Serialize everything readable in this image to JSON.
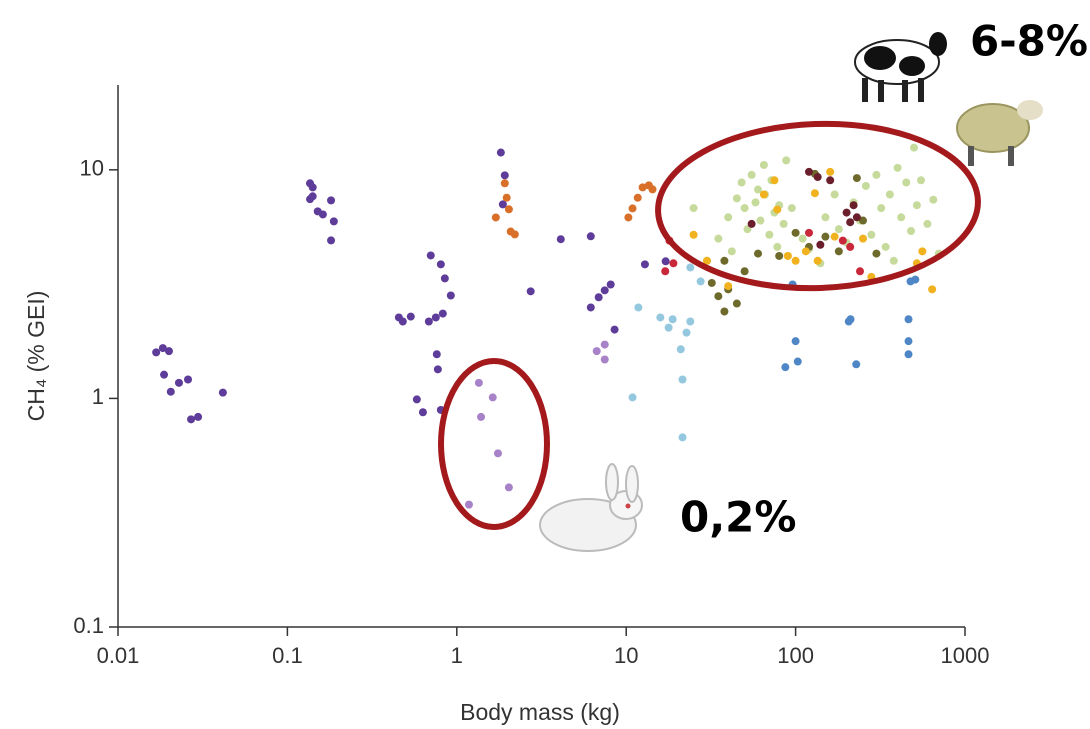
{
  "chart_data": {
    "type": "scatter",
    "x_label": "Body mass (kg)",
    "y_label": "CH₄ (% GEI)",
    "xscale": "log",
    "yscale": "log",
    "xlim": [
      0.01,
      1000
    ],
    "ylim": [
      0.1,
      23.5
    ],
    "xticks": [
      0.01,
      0.1,
      1,
      10,
      100,
      1000
    ],
    "yticks": [
      0.1,
      1,
      10
    ],
    "annotations": [
      "6-8%",
      "0,2%"
    ],
    "series": [
      {
        "color": "#5e3c99",
        "x": [
          0.0168,
          0.0184,
          0.02,
          0.0187,
          0.0205,
          0.0229,
          0.0259,
          0.027,
          0.0297,
          0.0416,
          0.136,
          0.141,
          0.151,
          0.162,
          0.181,
          0.188,
          0.181,
          0.136,
          0.141,
          0.455,
          0.48,
          0.535,
          0.684,
          0.752,
          0.827,
          0.702,
          0.805,
          0.85,
          0.922,
          0.762,
          0.773,
          0.581,
          0.631,
          0.805,
          1.82,
          1.92,
          1.87,
          4.11,
          2.73,
          6.18,
          6.88,
          7.47,
          8.1,
          6.18,
          8.54,
          12.9,
          17.1
        ],
        "values": [
          1.59,
          1.66,
          1.61,
          1.27,
          1.07,
          1.17,
          1.21,
          0.81,
          0.83,
          1.06,
          8.73,
          7.66,
          6.58,
          6.38,
          7.35,
          5.95,
          4.91,
          7.44,
          8.38,
          2.26,
          2.17,
          2.28,
          2.17,
          2.26,
          2.35,
          4.22,
          3.86,
          3.35,
          2.82,
          1.56,
          1.34,
          0.99,
          0.87,
          0.89,
          11.9,
          9.46,
          7.06,
          4.97,
          2.94,
          5.12,
          2.77,
          2.97,
          3.15,
          2.5,
          2.0,
          3.86,
          3.98
        ]
      },
      {
        "color": "#a882c8",
        "x": [
          1.35,
          1.39,
          1.63,
          1.75,
          2.03,
          1.18,
          6.7,
          7.47,
          7.47
        ],
        "values": [
          1.17,
          0.83,
          1.01,
          0.575,
          0.408,
          0.343,
          1.61,
          1.72,
          1.48
        ]
      },
      {
        "color": "#d9702a",
        "x": [
          1.92,
          1.97,
          2.03,
          2.08,
          2.2,
          1.7,
          10.9,
          11.7,
          12.5,
          13.6,
          14.3,
          10.3
        ],
        "values": [
          8.73,
          7.55,
          6.72,
          5.37,
          5.22,
          6.19,
          6.78,
          7.55,
          8.38,
          8.55,
          8.21,
          6.19
        ]
      },
      {
        "color": "#94c8df",
        "x": [
          10.9,
          11.8,
          15.9,
          17.8,
          18.8,
          21.0,
          22.7,
          23.9,
          21.5,
          21.5,
          27.5,
          23.9
        ],
        "values": [
          1.01,
          2.5,
          2.26,
          2.04,
          2.22,
          1.64,
          1.94,
          2.17,
          1.21,
          0.675,
          3.25,
          3.74
        ]
      },
      {
        "color": "#4f86c6",
        "x": [
          87,
          100,
          103,
          96,
          206,
          211,
          228,
          464,
          464,
          464,
          477,
          509
        ],
        "values": [
          1.37,
          1.78,
          1.45,
          3.15,
          2.17,
          2.22,
          1.41,
          2.22,
          1.78,
          1.56,
          3.25,
          3.31
        ]
      },
      {
        "color": "#c6da9c",
        "x": [
          35,
          40,
          45,
          48,
          50,
          52,
          55,
          58,
          60,
          62,
          65,
          66,
          70,
          72,
          75,
          78,
          80,
          85,
          90,
          95,
          110,
          120,
          140,
          150,
          180,
          200,
          220,
          240,
          260,
          280,
          300,
          320,
          340,
          360,
          400,
          420,
          450,
          480,
          500,
          520,
          550,
          600,
          650,
          700,
          30,
          25,
          42,
          88,
          380,
          170
        ],
        "values": [
          5.0,
          6.2,
          7.5,
          8.8,
          6.8,
          5.5,
          9.5,
          7.2,
          8.2,
          6.0,
          10.5,
          7.8,
          5.2,
          9.0,
          6.5,
          4.6,
          7.0,
          5.8,
          4.2,
          6.8,
          5.0,
          4.5,
          3.9,
          6.2,
          5.5,
          4.8,
          7.2,
          6.0,
          8.5,
          5.2,
          9.5,
          6.8,
          4.6,
          7.8,
          10.2,
          6.2,
          8.8,
          5.4,
          12.5,
          7.0,
          9.0,
          5.8,
          7.4,
          4.3,
          4.0,
          6.8,
          4.4,
          11.0,
          4.0,
          7.8
        ]
      },
      {
        "color": "#6e6a2c",
        "x": [
          32,
          35,
          38,
          40,
          45,
          50,
          60,
          80,
          100,
          120,
          150,
          180,
          230,
          250,
          300,
          38,
          130
        ],
        "values": [
          3.2,
          2.8,
          2.4,
          3.0,
          2.6,
          3.6,
          4.3,
          4.2,
          5.3,
          4.6,
          5.1,
          4.4,
          9.2,
          6.0,
          4.3,
          4.0,
          9.6
        ]
      },
      {
        "color": "#6b1f2c",
        "x": [
          120,
          135,
          160,
          200,
          220,
          210,
          230,
          140,
          55
        ],
        "values": [
          9.8,
          9.3,
          9.0,
          6.5,
          7.0,
          5.9,
          6.2,
          4.7,
          5.8
        ]
      },
      {
        "color": "#c9283a",
        "x": [
          18,
          19,
          17,
          190,
          210,
          240,
          120
        ],
        "values": [
          4.9,
          3.9,
          3.6,
          4.9,
          4.6,
          3.6,
          5.3
        ]
      },
      {
        "color": "#f0b21e",
        "x": [
          30,
          40,
          65,
          75,
          78,
          100,
          115,
          130,
          135,
          160,
          170,
          250,
          280,
          560,
          640,
          520,
          90,
          25
        ],
        "values": [
          4.0,
          3.1,
          7.8,
          9.0,
          6.7,
          4.0,
          4.4,
          7.9,
          4.0,
          9.8,
          5.1,
          5.0,
          3.4,
          4.4,
          3.0,
          3.9,
          4.2,
          5.2
        ]
      }
    ]
  }
}
